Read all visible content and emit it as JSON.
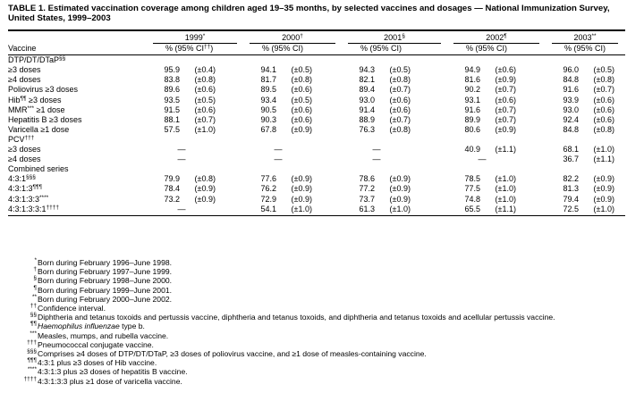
{
  "title": "TABLE 1. Estimated vaccination coverage among children aged 19–35 months, by selected vaccines and dosages — National Immunization Survey, United States, 1999–2003",
  "columns": {
    "vaccine": "Vaccine",
    "years": [
      {
        "year": "1999",
        "mark": "*",
        "sub": "% (95% CI",
        "submark": "††",
        "subend": ")"
      },
      {
        "year": "2000",
        "mark": "†",
        "sub": "% (95% CI)"
      },
      {
        "year": "2001",
        "mark": "§",
        "sub": "% (95% CI)"
      },
      {
        "year": "2002",
        "mark": "¶",
        "sub": "% (95% CI)"
      },
      {
        "year": "2003",
        "mark": "**",
        "sub": "% (95% CI)"
      }
    ]
  },
  "rows": [
    {
      "label": "DTP/DT/DTaP",
      "mark": "§§"
    },
    {
      "label": "≥3 doses",
      "indent": true,
      "cells": [
        [
          "95.9",
          "(±0.4)"
        ],
        [
          "94.1",
          "(±0.5)"
        ],
        [
          "94.3",
          "(±0.5)"
        ],
        [
          "94.9",
          "(±0.6)"
        ],
        [
          "96.0",
          "(±0.5)"
        ]
      ]
    },
    {
      "label": "≥4 doses",
      "indent": true,
      "cells": [
        [
          "83.8",
          "(±0.8)"
        ],
        [
          "81.7",
          "(±0.8)"
        ],
        [
          "82.1",
          "(±0.8)"
        ],
        [
          "81.6",
          "(±0.9)"
        ],
        [
          "84.8",
          "(±0.8)"
        ]
      ]
    },
    {
      "label": "Poliovirus ≥3 doses",
      "cells": [
        [
          "89.6",
          "(±0.6)"
        ],
        [
          "89.5",
          "(±0.6)"
        ],
        [
          "89.4",
          "(±0.7)"
        ],
        [
          "90.2",
          "(±0.7)"
        ],
        [
          "91.6",
          "(±0.7)"
        ]
      ]
    },
    {
      "label": "Hib",
      "mark": "¶¶",
      "suffix": " ≥3 doses",
      "cells": [
        [
          "93.5",
          "(±0.5)"
        ],
        [
          "93.4",
          "(±0.5)"
        ],
        [
          "93.0",
          "(±0.6)"
        ],
        [
          "93.1",
          "(±0.6)"
        ],
        [
          "93.9",
          "(±0.6)"
        ]
      ]
    },
    {
      "label": "MMR",
      "mark": "***",
      "suffix": " ≥1 dose",
      "cells": [
        [
          "91.5",
          "(±0.6)"
        ],
        [
          "90.5",
          "(±0.6)"
        ],
        [
          "91.4",
          "(±0.6)"
        ],
        [
          "91.6",
          "(±0.7)"
        ],
        [
          "93.0",
          "(±0.6)"
        ]
      ]
    },
    {
      "label": "Hepatitis B ≥3 doses",
      "cells": [
        [
          "88.1",
          "(±0.7)"
        ],
        [
          "90.3",
          "(±0.6)"
        ],
        [
          "88.9",
          "(±0.7)"
        ],
        [
          "89.9",
          "(±0.7)"
        ],
        [
          "92.4",
          "(±0.6)"
        ]
      ]
    },
    {
      "label": "Varicella ≥1 dose",
      "cells": [
        [
          "57.5",
          "(±1.0)"
        ],
        [
          "67.8",
          "(±0.9)"
        ],
        [
          "76.3",
          "(±0.8)"
        ],
        [
          "80.6",
          "(±0.9)"
        ],
        [
          "84.8",
          "(±0.8)"
        ]
      ]
    },
    {
      "label": "PCV",
      "mark": "†††"
    },
    {
      "label": "≥3 doses",
      "indent": true,
      "cells": [
        [
          "—"
        ],
        [
          "—"
        ],
        [
          "—"
        ],
        [
          "40.9",
          "(±1.1)"
        ],
        [
          "68.1",
          "(±1.0)"
        ]
      ]
    },
    {
      "label": "≥4 doses",
      "indent": true,
      "cells": [
        [
          "—"
        ],
        [
          "—"
        ],
        [
          "—"
        ],
        [
          "—"
        ],
        [
          "36.7",
          "(±1.1)"
        ]
      ]
    },
    {
      "label": "Combined series"
    },
    {
      "label": "4:3:1",
      "mark": "§§§",
      "indent": true,
      "cells": [
        [
          "79.9",
          "(±0.8)"
        ],
        [
          "77.6",
          "(±0.9)"
        ],
        [
          "78.6",
          "(±0.9)"
        ],
        [
          "78.5",
          "(±1.0)"
        ],
        [
          "82.2",
          "(±0.9)"
        ]
      ]
    },
    {
      "label": "4:3:1:3",
      "mark": "¶¶¶",
      "indent": true,
      "cells": [
        [
          "78.4",
          "(±0.9)"
        ],
        [
          "76.2",
          "(±0.9)"
        ],
        [
          "77.2",
          "(±0.9)"
        ],
        [
          "77.5",
          "(±1.0)"
        ],
        [
          "81.3",
          "(±0.9)"
        ]
      ]
    },
    {
      "label": "4:3:1:3:3",
      "mark": "****",
      "indent": true,
      "cells": [
        [
          "73.2",
          "(±0.9)"
        ],
        [
          "72.9",
          "(±0.9)"
        ],
        [
          "73.7",
          "(±0.9)"
        ],
        [
          "74.8",
          "(±1.0)"
        ],
        [
          "79.4",
          "(±0.9)"
        ]
      ]
    },
    {
      "label": "4:3:1:3:3:1",
      "mark": "††††",
      "indent": true,
      "cells": [
        [
          "—"
        ],
        [
          "54.1",
          "(±1.0)"
        ],
        [
          "61.3",
          "(±1.0)"
        ],
        [
          "65.5",
          "(±1.1)"
        ],
        [
          "72.5",
          "(±1.0)"
        ]
      ]
    }
  ],
  "footnotes": [
    {
      "symbol": "*",
      "text": "Born during February 1996–June 1998."
    },
    {
      "symbol": "†",
      "text": "Born during February 1997–June 1999."
    },
    {
      "symbol": "§",
      "text": "Born during February 1998–June 2000."
    },
    {
      "symbol": "¶",
      "text": "Born during February 1999–June 2001."
    },
    {
      "symbol": "**",
      "text": "Born during February 2000–June 2002."
    },
    {
      "symbol": "††",
      "text": "Confidence interval."
    },
    {
      "symbol": "§§",
      "text": "Diphtheria and tetanus toxoids and pertussis vaccine, diphtheria and tetanus toxoids, and diphtheria and tetanus toxoids and acellular pertussis vaccine."
    },
    {
      "symbol": "¶¶",
      "italic": "Haemophilus influenzae",
      "text": " type b."
    },
    {
      "symbol": "***",
      "text": "Measles, mumps, and rubella vaccine."
    },
    {
      "symbol": "†††",
      "text": "Pneumococcal conjugate vaccine."
    },
    {
      "symbol": "§§§",
      "text": "Comprises ≥4 doses of DTP/DT/DTaP, ≥3 doses of poliovirus vaccine, and ≥1 dose of measles-containing vaccine."
    },
    {
      "symbol": "¶¶¶",
      "text": "4:3:1 plus ≥3 doses of Hib vaccine."
    },
    {
      "symbol": "****",
      "text": "4:3:1:3 plus ≥3 doses of hepatitis B vaccine."
    },
    {
      "symbol": "††††",
      "text": "4:3:1:3:3 plus ≥1 dose of varicella vaccine."
    }
  ]
}
